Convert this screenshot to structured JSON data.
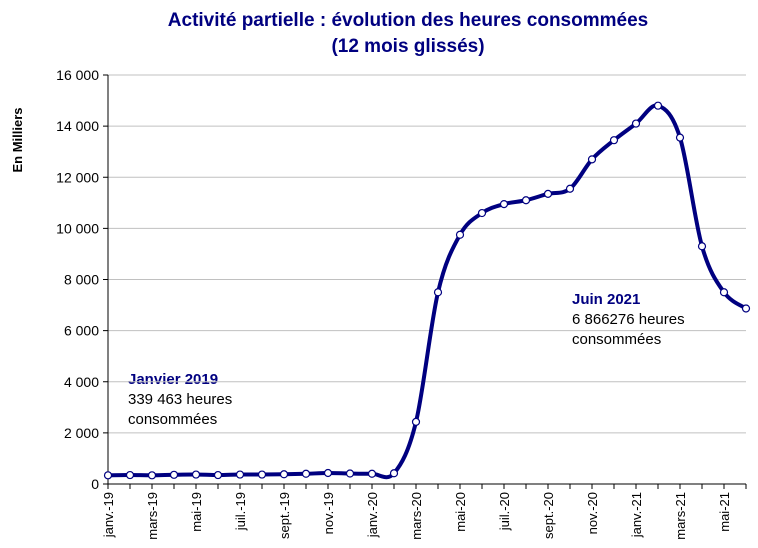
{
  "chart_data": {
    "type": "line",
    "title": "Activité partielle : évolution des heures consommées",
    "subtitle": "(12 mois glissés)",
    "y_label": "En Milliers",
    "categories": [
      "janv.-19",
      null,
      "mars-19",
      null,
      "mai-19",
      null,
      "juil.-19",
      null,
      "sept.-19",
      null,
      "nov.-19",
      null,
      "janv.-20",
      null,
      "mars-20",
      null,
      "mai-20",
      null,
      "juil.-20",
      null,
      "sept.-20",
      null,
      "nov.-20",
      null,
      "janv.-21",
      null,
      "mars-21",
      null,
      "mai-21",
      null
    ],
    "series": [
      {
        "name": "Heures consommées",
        "color": "#000080",
        "values": [
          339.463,
          350,
          340,
          360,
          370,
          350,
          370,
          370,
          380,
          400,
          430,
          410,
          400,
          420,
          2430,
          7500,
          9750,
          10600,
          10950,
          11100,
          11350,
          11550,
          12700,
          13450,
          14100,
          14800,
          13550,
          9300,
          7500,
          6866.276
        ]
      }
    ],
    "ylim": [
      0,
      16000
    ],
    "yticks": [
      0,
      {
        "value": 2000,
        "label": "2 000"
      },
      {
        "value": 4000,
        "label": "4 000"
      },
      {
        "value": 6000,
        "label": "6 000"
      },
      {
        "value": 8000,
        "label": "8 000"
      },
      {
        "value": 10000,
        "label": "10 000"
      },
      {
        "value": 12000,
        "label": "12 000"
      },
      {
        "value": 14000,
        "label": "14 000"
      },
      {
        "value": 16000,
        "label": "16 000"
      }
    ],
    "grid": true,
    "annotations": [
      {
        "title": "Janvier 2019",
        "lines": [
          "339 463 heures",
          "consommées"
        ]
      },
      {
        "title": "Juin 2021",
        "lines": [
          "6 866276 heures",
          "consommées"
        ]
      }
    ]
  }
}
